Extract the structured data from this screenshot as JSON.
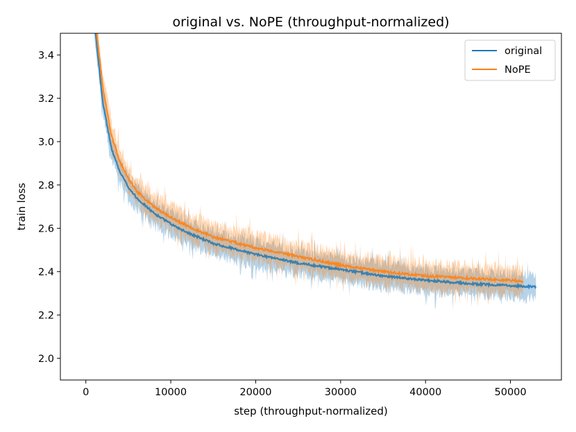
{
  "chart_data": {
    "type": "line",
    "title": "original vs. NoPE (throughput-normalized)",
    "xlabel": "step (throughput-normalized)",
    "ylabel": "train loss",
    "xlim": [
      -3000,
      56000
    ],
    "ylim": [
      1.9,
      3.5
    ],
    "xticks": [
      0,
      10000,
      20000,
      30000,
      40000,
      50000
    ],
    "xtick_labels": [
      "0",
      "10000",
      "20000",
      "30000",
      "40000",
      "50000"
    ],
    "yticks": [
      2.0,
      2.2,
      2.4,
      2.6,
      2.8,
      3.0,
      3.2,
      3.4
    ],
    "ytick_labels": [
      "2.0",
      "2.2",
      "2.4",
      "2.6",
      "2.8",
      "3.0",
      "3.2",
      "3.4"
    ],
    "grid": false,
    "legend": {
      "position": "top-right"
    },
    "series": [
      {
        "name": "original",
        "color": "#1f77b4",
        "x": [
          1000,
          2000,
          3000,
          4000,
          5000,
          6000,
          8000,
          10000,
          12000,
          15000,
          18000,
          20000,
          25000,
          30000,
          35000,
          40000,
          45000,
          50000,
          53000
        ],
        "y": [
          3.55,
          3.18,
          2.97,
          2.86,
          2.79,
          2.74,
          2.67,
          2.62,
          2.58,
          2.53,
          2.5,
          2.48,
          2.44,
          2.41,
          2.38,
          2.36,
          2.345,
          2.335,
          2.33
        ],
        "band": 0.055
      },
      {
        "name": "NoPE",
        "color": "#ff7f0e",
        "x": [
          1000,
          2000,
          3000,
          4000,
          5000,
          6000,
          8000,
          10000,
          12000,
          15000,
          18000,
          20000,
          25000,
          30000,
          35000,
          40000,
          45000,
          50000,
          51500
        ],
        "y": [
          3.6,
          3.25,
          3.03,
          2.91,
          2.83,
          2.77,
          2.7,
          2.65,
          2.61,
          2.56,
          2.53,
          2.51,
          2.47,
          2.43,
          2.4,
          2.38,
          2.37,
          2.36,
          2.355
        ],
        "band": 0.06
      }
    ]
  }
}
